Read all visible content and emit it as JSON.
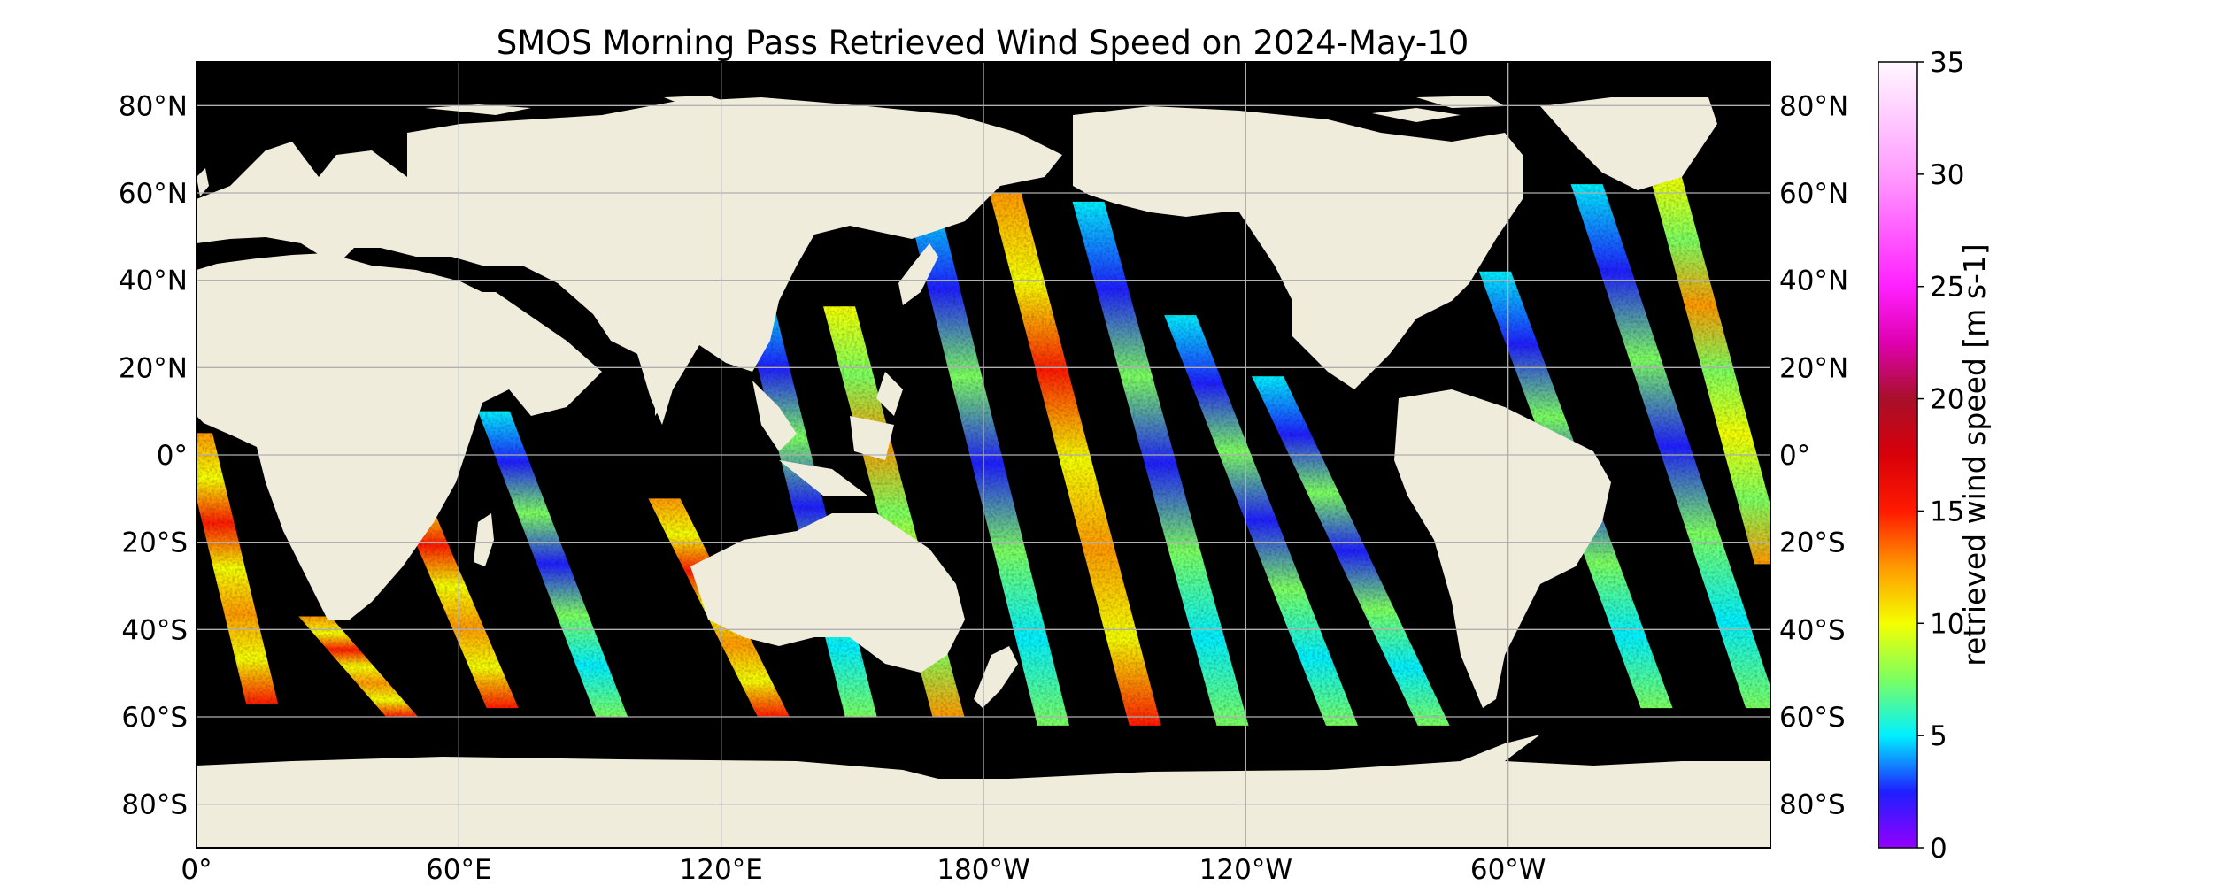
{
  "figure": {
    "title": "SMOS Morning Pass Retrieved Wind Speed on 2024-May-10"
  },
  "map": {
    "projection": "plate-carree",
    "lon_range": [
      0,
      360
    ],
    "lat_range": [
      -90,
      90
    ],
    "ocean_no_data_color": "#000000",
    "land_color": "#efecdc",
    "gridlines": true,
    "lat_ticks": [
      {
        "value": 80,
        "label": "80°N"
      },
      {
        "value": 60,
        "label": "60°N"
      },
      {
        "value": 40,
        "label": "40°N"
      },
      {
        "value": 20,
        "label": "20°N"
      },
      {
        "value": 0,
        "label": "0°"
      },
      {
        "value": -20,
        "label": "20°S"
      },
      {
        "value": -40,
        "label": "40°S"
      },
      {
        "value": -60,
        "label": "60°S"
      },
      {
        "value": -80,
        "label": "80°S"
      }
    ],
    "lon_ticks": [
      {
        "value": 0,
        "label": "0°"
      },
      {
        "value": 60,
        "label": "60°E"
      },
      {
        "value": 120,
        "label": "120°E"
      },
      {
        "value": 180,
        "label": "180°W"
      },
      {
        "value": 240,
        "label": "120°W"
      },
      {
        "value": 300,
        "label": "60°W"
      }
    ],
    "swaths": [
      {
        "id": "s1",
        "start": [
          0,
          5
        ],
        "end": [
          15,
          -57
        ],
        "dominant": "orange"
      },
      {
        "id": "s2",
        "start": [
          27,
          -37
        ],
        "end": [
          47,
          -60
        ],
        "dominant": "orange"
      },
      {
        "id": "s3",
        "start": [
          46,
          -2
        ],
        "end": [
          70,
          -58
        ],
        "dominant": "orange"
      },
      {
        "id": "s4",
        "start": [
          68,
          10
        ],
        "end": [
          95,
          -60
        ],
        "dominant": "cyan"
      },
      {
        "id": "s5",
        "start": [
          107,
          -10
        ],
        "end": [
          132,
          -60
        ],
        "dominant": "orange"
      },
      {
        "id": "s6",
        "start": [
          128,
          36
        ],
        "end": [
          152,
          -60
        ],
        "dominant": "cyan"
      },
      {
        "id": "s7",
        "start": [
          147,
          34
        ],
        "end": [
          172,
          -60
        ],
        "dominant": "yellow"
      },
      {
        "id": "s8",
        "start": [
          166,
          58
        ],
        "end": [
          196,
          -62
        ],
        "dominant": "cyan"
      },
      {
        "id": "s9",
        "start": [
          185,
          60
        ],
        "end": [
          217,
          -62
        ],
        "dominant": "orange"
      },
      {
        "id": "s10",
        "start": [
          204,
          58
        ],
        "end": [
          237,
          -62
        ],
        "dominant": "cyan"
      },
      {
        "id": "s11",
        "start": [
          225,
          32
        ],
        "end": [
          262,
          -62
        ],
        "dominant": "cyan"
      },
      {
        "id": "s12",
        "start": [
          245,
          18
        ],
        "end": [
          283,
          -62
        ],
        "dominant": "cyan"
      },
      {
        "id": "s13",
        "start": [
          297,
          42
        ],
        "end": [
          334,
          -58
        ],
        "dominant": "cyan"
      },
      {
        "id": "s14",
        "start": [
          318,
          62
        ],
        "end": [
          358,
          -58
        ],
        "dominant": "cyan"
      },
      {
        "id": "s15",
        "start": [
          336,
          64
        ],
        "end": [
          360,
          -25
        ],
        "dominant": "yellow"
      }
    ]
  },
  "colorbar": {
    "label": "retrieved wind speed [m s-1]",
    "range": [
      0,
      35
    ],
    "ticks": [
      {
        "value": 0,
        "label": "0"
      },
      {
        "value": 5,
        "label": "5"
      },
      {
        "value": 10,
        "label": "10"
      },
      {
        "value": 15,
        "label": "15"
      },
      {
        "value": 20,
        "label": "20"
      },
      {
        "value": 25,
        "label": "25"
      },
      {
        "value": 30,
        "label": "30"
      },
      {
        "value": 35,
        "label": "35"
      }
    ],
    "stops": [
      {
        "value": 0,
        "color": "#9400ff"
      },
      {
        "value": 2.5,
        "color": "#1f1fff"
      },
      {
        "value": 5,
        "color": "#00f0ff"
      },
      {
        "value": 7.5,
        "color": "#7cff60"
      },
      {
        "value": 10,
        "color": "#f4ff00"
      },
      {
        "value": 12.5,
        "color": "#ff9a00"
      },
      {
        "value": 15,
        "color": "#ff1a00"
      },
      {
        "value": 17.5,
        "color": "#d8000a"
      },
      {
        "value": 20,
        "color": "#a8102a"
      },
      {
        "value": 22.5,
        "color": "#e000b0"
      },
      {
        "value": 25,
        "color": "#ff20ff"
      },
      {
        "value": 30,
        "color": "#ff9cff"
      },
      {
        "value": 35,
        "color": "#fff8ff"
      }
    ]
  }
}
